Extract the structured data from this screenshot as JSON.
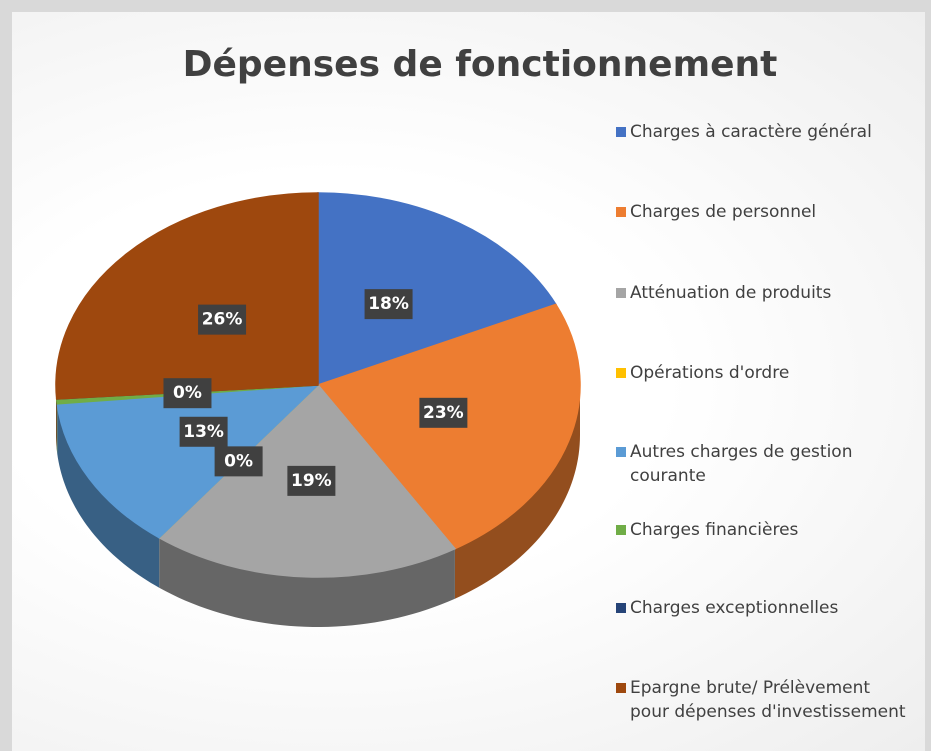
{
  "chart_data": {
    "type": "pie3d",
    "title": "Dépenses de fonctionnement",
    "categories": [
      "Charges à caractère général",
      "Charges de personnel",
      "Atténuation de produits",
      "Opérations d'ordre",
      "Autres charges de gestion courante",
      "Charges financières",
      "Charges exceptionnelles",
      "Epargne brute/ Prélèvement pour dépenses d'investissement"
    ],
    "values": [
      18,
      23,
      19,
      0,
      13,
      0.4,
      0,
      26
    ],
    "value_labels": [
      "18%",
      "23%",
      "19%",
      "0%",
      "13%",
      "0%",
      null,
      "26%"
    ],
    "colors": [
      "#4472c4",
      "#ed7d31",
      "#a5a5a5",
      "#ffc000",
      "#5b9bd5",
      "#70ad47",
      "#264478",
      "#9e480e"
    ],
    "legend": "right"
  }
}
